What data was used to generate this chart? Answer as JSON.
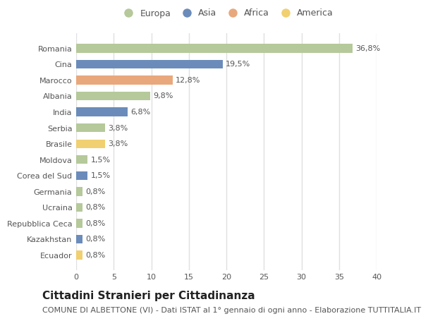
{
  "categories": [
    "Romania",
    "Cina",
    "Marocco",
    "Albania",
    "India",
    "Serbia",
    "Brasile",
    "Moldova",
    "Corea del Sud",
    "Germania",
    "Ucraina",
    "Repubblica Ceca",
    "Kazakhstan",
    "Ecuador"
  ],
  "values": [
    36.8,
    19.5,
    12.8,
    9.8,
    6.8,
    3.8,
    3.8,
    1.5,
    1.5,
    0.8,
    0.8,
    0.8,
    0.8,
    0.8
  ],
  "labels": [
    "36,8%",
    "19,5%",
    "12,8%",
    "9,8%",
    "6,8%",
    "3,8%",
    "3,8%",
    "1,5%",
    "1,5%",
    "0,8%",
    "0,8%",
    "0,8%",
    "0,8%",
    "0,8%"
  ],
  "continents": [
    "Europa",
    "Asia",
    "Africa",
    "Europa",
    "Asia",
    "Europa",
    "America",
    "Europa",
    "Asia",
    "Europa",
    "Europa",
    "Europa",
    "Asia",
    "America"
  ],
  "continent_colors": {
    "Europa": "#b5c99a",
    "Asia": "#6b8cba",
    "Africa": "#e8a87c",
    "America": "#f0d070"
  },
  "legend_entries": [
    "Europa",
    "Asia",
    "Africa",
    "America"
  ],
  "xlim": [
    0,
    40
  ],
  "xticks": [
    0,
    5,
    10,
    15,
    20,
    25,
    30,
    35,
    40
  ],
  "title": "Cittadini Stranieri per Cittadinanza",
  "subtitle": "COMUNE DI ALBETTONE (VI) - Dati ISTAT al 1° gennaio di ogni anno - Elaborazione TUTTITALIA.IT",
  "background_color": "#ffffff",
  "plot_bg_color": "#ffffff",
  "grid_color": "#e0e0e0",
  "bar_height": 0.55,
  "title_fontsize": 11,
  "subtitle_fontsize": 8,
  "label_fontsize": 8,
  "tick_fontsize": 8,
  "legend_fontsize": 9
}
